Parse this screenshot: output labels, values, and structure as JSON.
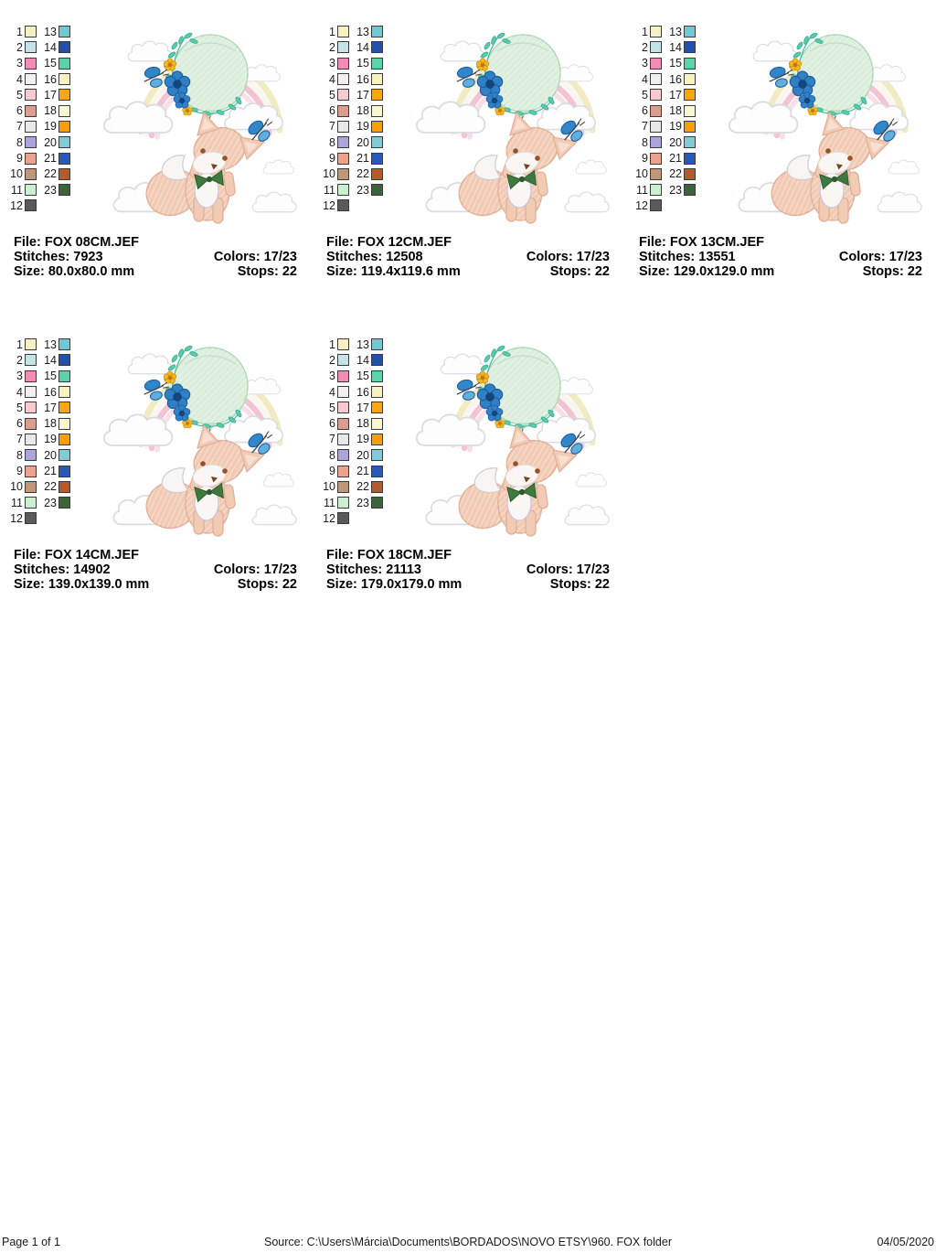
{
  "cards": [
    {
      "file": "File: FOX 08CM.JEF",
      "stitches": "Stitches: 7923",
      "size": "Size: 80.0x80.0 mm",
      "colors": "Colors: 17/23",
      "stops": "Stops: 22"
    },
    {
      "file": "File: FOX 12CM.JEF",
      "stitches": "Stitches: 12508",
      "size": "Size: 119.4x119.6 mm",
      "colors": "Colors: 17/23",
      "stops": "Stops: 22"
    },
    {
      "file": "File: FOX 13CM.JEF",
      "stitches": "Stitches: 13551",
      "size": "Size: 129.0x129.0 mm",
      "colors": "Colors: 17/23",
      "stops": "Stops: 22"
    },
    {
      "file": "File: FOX 14CM.JEF",
      "stitches": "Stitches: 14902",
      "size": "Size: 139.0x139.0 mm",
      "colors": "Colors: 17/23",
      "stops": "Stops: 22"
    },
    {
      "file": "File: FOX 18CM.JEF",
      "stitches": "Stitches: 21113",
      "size": "Size: 179.0x179.0 mm",
      "colors": "Colors: 17/23",
      "stops": "Stops: 22"
    }
  ],
  "palette": {
    "pairs": [
      {
        "ln": "1",
        "lc": "#F7F0C4",
        "rn": "13",
        "rc": "#6FC9D3"
      },
      {
        "ln": "2",
        "lc": "#C5E3E6",
        "rn": "14",
        "rc": "#2151AB"
      },
      {
        "ln": "3",
        "lc": "#F28CB4",
        "rn": "15",
        "rc": "#58D3AB"
      },
      {
        "ln": "4",
        "lc": "#F2EFEE",
        "rn": "16",
        "rc": "#F8F3BE"
      },
      {
        "ln": "5",
        "lc": "#F7C9D1",
        "rn": "17",
        "rc": "#FBA50F"
      },
      {
        "ln": "6",
        "lc": "#DB9E8E",
        "rn": "18",
        "rc": "#FAF6CF"
      },
      {
        "ln": "7",
        "lc": "#E8E8E8",
        "rn": "19",
        "rc": "#FB9D06"
      },
      {
        "ln": "8",
        "lc": "#AFA3DB",
        "rn": "20",
        "rc": "#7FCBD8"
      },
      {
        "ln": "9",
        "lc": "#ECA38D",
        "rn": "21",
        "rc": "#2659BA"
      },
      {
        "ln": "10",
        "lc": "#BE9879",
        "rn": "22",
        "rc": "#B55B2B"
      },
      {
        "ln": "11",
        "lc": "#CDEECF",
        "rn": "23",
        "rc": "#3C6339"
      },
      {
        "ln": "12",
        "lc": "#5A5A5A",
        "rn": null,
        "rc": null
      }
    ]
  },
  "footer": {
    "page_label": "Page 1 of 1",
    "source": "Source: C:\\Users\\Márcia\\Documents\\BORDADOS\\NOVO ETSY\\960. FOX folder",
    "date": "04/05/2020"
  },
  "artwork": {
    "description": "Fox hanging from a balloon with rainbow, clouds, flowers and butterflies",
    "colors": {
      "balloon": "#DBEEDC",
      "fox_body": "#F2CBB4",
      "fox_white": "#F9F6F3",
      "bow_green": "#3E7A40",
      "butterfly_blue": "#2F86C8",
      "rainbow_yellow": "#F0EBC2",
      "rainbow_pink": "#F3C3D2",
      "leaves_teal": "#58CBAD",
      "flower_blue": "#2F80C4",
      "flower_yellow": "#F4B724",
      "cloud_outline": "#D8DCE2"
    }
  }
}
